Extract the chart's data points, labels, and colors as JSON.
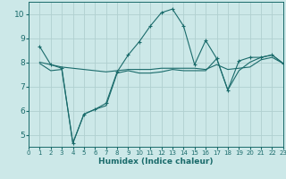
{
  "xlabel": "Humidex (Indice chaleur)",
  "xlim": [
    0,
    23
  ],
  "ylim": [
    4.5,
    10.5
  ],
  "yticks": [
    5,
    6,
    7,
    8,
    9,
    10
  ],
  "xticks": [
    0,
    1,
    2,
    3,
    4,
    5,
    6,
    7,
    8,
    9,
    10,
    11,
    12,
    13,
    14,
    15,
    16,
    17,
    18,
    19,
    20,
    21,
    22,
    23
  ],
  "background_color": "#cce8e8",
  "grid_color": "#b0d0d0",
  "line_color": "#1a6b6b",
  "line1_marked_x": [
    1,
    2,
    3,
    4,
    5,
    6,
    7,
    8,
    9,
    10,
    11,
    12,
    13,
    14,
    15,
    16,
    17,
    18,
    19,
    20,
    21,
    22,
    23
  ],
  "line1_marked_y": [
    8.65,
    7.9,
    7.75,
    4.65,
    5.85,
    6.05,
    6.3,
    7.6,
    8.3,
    8.85,
    9.5,
    10.05,
    10.2,
    9.5,
    7.9,
    8.9,
    8.15,
    6.85,
    8.05,
    8.2,
    8.2,
    8.3,
    7.95
  ],
  "line2_x": [
    1,
    2,
    3,
    4,
    5,
    6,
    7,
    8,
    9,
    10,
    11,
    12,
    13,
    14,
    15,
    16,
    17,
    18,
    19,
    20,
    21,
    22,
    23
  ],
  "line2_y": [
    8.0,
    7.9,
    7.8,
    7.75,
    7.7,
    7.65,
    7.6,
    7.65,
    7.7,
    7.7,
    7.7,
    7.75,
    7.75,
    7.75,
    7.75,
    7.7,
    7.9,
    7.7,
    7.75,
    7.8,
    8.1,
    8.2,
    7.95
  ],
  "line3_x": [
    1,
    2,
    3,
    4,
    5,
    6,
    7,
    8,
    9,
    10,
    11,
    12,
    13,
    14,
    15,
    16,
    17,
    18,
    19,
    20,
    21,
    22,
    23
  ],
  "line3_y": [
    7.95,
    7.65,
    7.7,
    4.65,
    5.85,
    6.05,
    6.2,
    7.55,
    7.65,
    7.55,
    7.55,
    7.6,
    7.7,
    7.65,
    7.65,
    7.65,
    8.15,
    6.85,
    7.65,
    8.0,
    8.2,
    8.3,
    7.95
  ]
}
